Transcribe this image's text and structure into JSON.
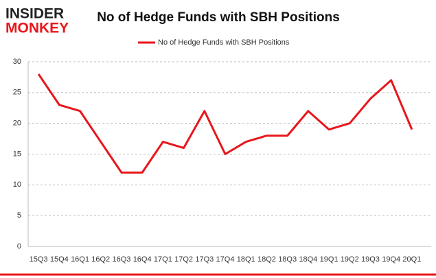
{
  "brand": {
    "line1": "INSIDER",
    "line2": "MONKEY"
  },
  "chart_data": {
    "type": "line",
    "title": "No of Hedge Funds with SBH Positions",
    "categories": [
      "15Q3",
      "15Q4",
      "16Q1",
      "16Q2",
      "16Q3",
      "16Q4",
      "17Q1",
      "17Q2",
      "17Q3",
      "17Q4",
      "18Q1",
      "18Q2",
      "18Q3",
      "18Q4",
      "19Q1",
      "19Q2",
      "19Q3",
      "19Q4",
      "20Q1"
    ],
    "series": [
      {
        "name": "No of Hedge Funds with SBH Positions",
        "color": "#e8161b",
        "values": [
          28,
          23,
          22,
          17,
          12,
          12,
          17,
          16,
          22,
          15,
          17,
          18,
          18,
          22,
          19,
          20,
          24,
          27,
          19
        ]
      }
    ],
    "ylim": [
      0,
      30
    ],
    "yticks": [
      0,
      5,
      10,
      15,
      20,
      25,
      30
    ],
    "grid": true,
    "legend": "top"
  }
}
